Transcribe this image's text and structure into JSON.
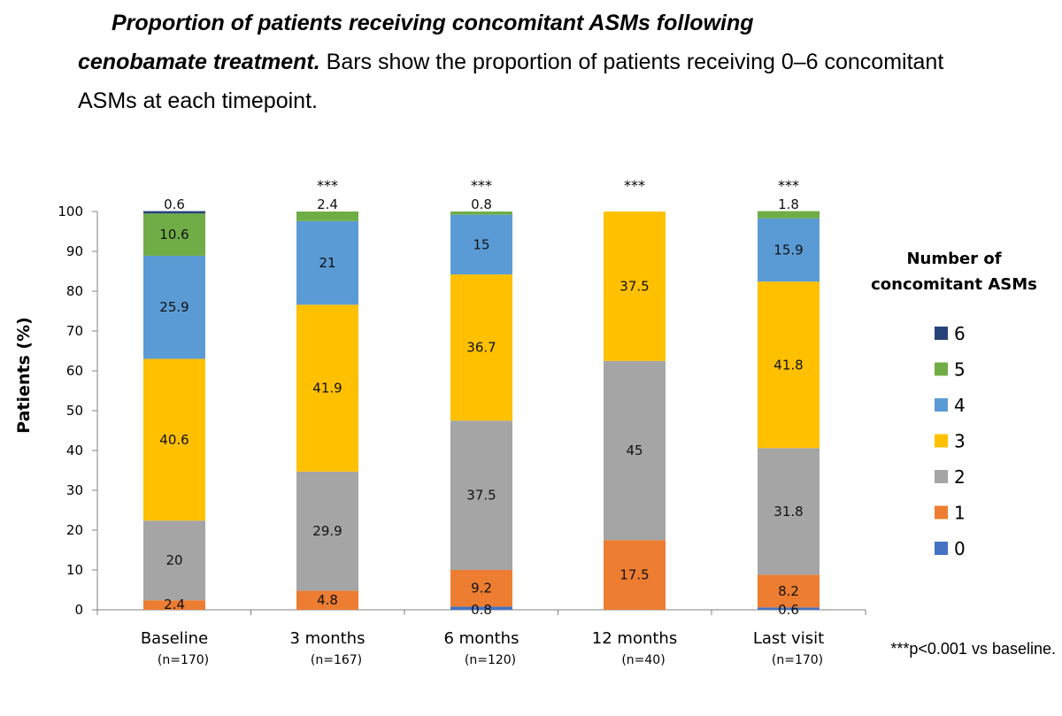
{
  "caption": {
    "bold_part1": "Proportion of patients receiving concomitant ASMs following",
    "bold_part2": "cenobamate treatment.",
    "rest": " Bars show the proportion of patients receiving 0–6 concomitant ASMs at each timepoint."
  },
  "chart_data": {
    "type": "bar",
    "stacked": true,
    "ylabel": "Patients (%)",
    "ylim": [
      0,
      100
    ],
    "yticks": [
      0,
      10,
      20,
      30,
      40,
      50,
      60,
      70,
      80,
      90,
      100
    ],
    "categories": [
      "Baseline",
      "3 months",
      "6 months",
      "12 months",
      "Last visit"
    ],
    "n_labels": [
      "(n=170)",
      "(n=167)",
      "(n=120)",
      "(n=40)",
      "(n=170)"
    ],
    "significance": [
      "",
      "***",
      "***",
      "***",
      "***"
    ],
    "legend_title_line1": "Number of",
    "legend_title_line2": "concomitant ASMs",
    "series": [
      {
        "name": "0",
        "color": "#4472C4",
        "values": [
          0,
          0,
          0.8,
          0,
          0.6
        ]
      },
      {
        "name": "1",
        "color": "#ED7D31",
        "values": [
          2.4,
          4.8,
          9.2,
          17.5,
          8.2
        ]
      },
      {
        "name": "2",
        "color": "#A5A5A5",
        "values": [
          20,
          29.9,
          37.5,
          45,
          31.8
        ]
      },
      {
        "name": "3",
        "color": "#FFC000",
        "values": [
          40.6,
          41.9,
          36.7,
          37.5,
          41.8
        ]
      },
      {
        "name": "4",
        "color": "#5B9BD5",
        "values": [
          25.9,
          21,
          15,
          0,
          15.9
        ]
      },
      {
        "name": "5",
        "color": "#70AD47",
        "values": [
          10.6,
          2.4,
          0.8,
          0,
          1.8
        ]
      },
      {
        "name": "6",
        "color": "#264478",
        "values": [
          0.6,
          0,
          0,
          0,
          0
        ]
      }
    ],
    "data_labels": [
      [
        null,
        "2.4",
        "20",
        "40.6",
        "25.9",
        "10.6",
        "0.6"
      ],
      [
        null,
        "4.8",
        "29.9",
        "41.9",
        "21",
        "2.4",
        null
      ],
      [
        "0.8",
        "9.2",
        "37.5",
        "36.7",
        "15",
        "0.8",
        null
      ],
      [
        null,
        "17.5",
        "45",
        "37.5",
        null,
        null,
        null
      ],
      [
        "0.6",
        "8.2",
        "31.8",
        "41.8",
        "15.9",
        "1.8",
        null
      ]
    ],
    "footnote": "***p<0.001 vs baseline."
  }
}
